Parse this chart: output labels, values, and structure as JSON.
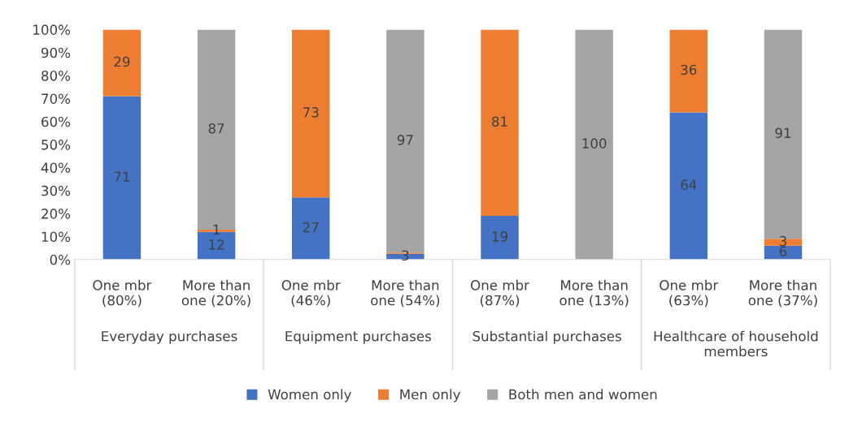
{
  "chart_data": {
    "type": "bar",
    "stacked": true,
    "categories": [
      "One mbr\n(80%)",
      "More than\none (20%)",
      "One mbr\n(46%)",
      "More than\none (54%)",
      "One mbr\n(87%)",
      "More than\none (13%)",
      "One mbr\n(63%)",
      "More than\none (37%)"
    ],
    "annotations": [
      "Everyday purchases",
      "Equipment purchases",
      "Substantial purchases",
      "Healthcare of household\nmembers"
    ],
    "series": [
      {
        "name": "Women only",
        "color": "#4472c4",
        "values": [
          71,
          12,
          27,
          2.5,
          19,
          0,
          64,
          6
        ],
        "value_labels": [
          "71",
          "12",
          "27",
          "3",
          "19",
          null,
          "64",
          "6"
        ]
      },
      {
        "name": "Men only",
        "color": "#ed7d31",
        "values": [
          29,
          1,
          73,
          0.5,
          81,
          0,
          36,
          3
        ],
        "value_labels": [
          "29",
          "1",
          "73",
          null,
          "81",
          null,
          "36",
          "3"
        ]
      },
      {
        "name": "Both men and women",
        "color": "#a5a5a5",
        "values": [
          0,
          87,
          0,
          97,
          0,
          100,
          0,
          91
        ],
        "value_labels": [
          null,
          "87",
          null,
          "97",
          null,
          "100",
          null,
          "91"
        ]
      }
    ],
    "ylim": [
      0,
      100
    ],
    "yticks": [
      {
        "value": 0,
        "label": "0%"
      },
      {
        "value": 10,
        "label": "10%"
      },
      {
        "value": 20,
        "label": "20%"
      },
      {
        "value": 30,
        "label": "30%"
      },
      {
        "value": 40,
        "label": "40%"
      },
      {
        "value": 50,
        "label": "50%"
      },
      {
        "value": 60,
        "label": "60%"
      },
      {
        "value": 70,
        "label": "70%"
      },
      {
        "value": 80,
        "label": "80%"
      },
      {
        "value": 90,
        "label": "90%"
      },
      {
        "value": 100,
        "label": "100%"
      }
    ],
    "grid": false,
    "legend": "bottom"
  }
}
